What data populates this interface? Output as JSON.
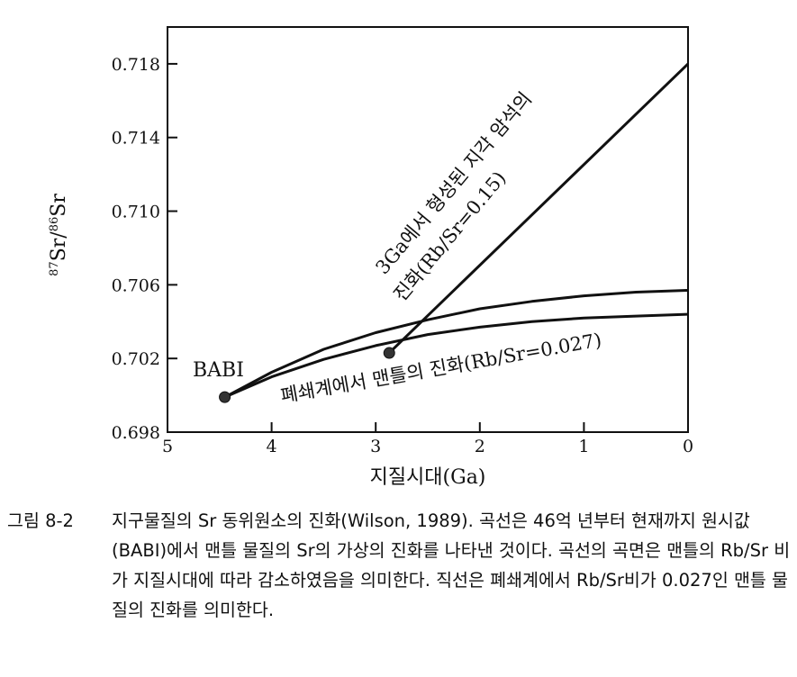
{
  "chart_data": {
    "type": "line",
    "xlabel": "지질시대(Ga)",
    "ylabel": "87Sr/86Sr",
    "xlim": [
      5,
      0
    ],
    "ylim": [
      0.698,
      0.72
    ],
    "xticks": [
      5,
      4,
      3,
      2,
      1,
      0
    ],
    "yticks": [
      0.698,
      0.702,
      0.706,
      0.71,
      0.714,
      0.718
    ],
    "xtick_labels": [
      "5",
      "4",
      "3",
      "2",
      "1",
      "0"
    ],
    "ytick_labels": [
      "0.698",
      "0.702",
      "0.706",
      "0.710",
      "0.714",
      "0.718"
    ],
    "series": [
      {
        "name": "",
        "x": [
          4.45,
          4.0,
          3.5,
          3.0,
          2.5,
          2.0,
          1.5,
          1.0,
          0.5,
          0.0
        ],
        "values": [
          0.6999,
          0.70125,
          0.7025,
          0.7034,
          0.7041,
          0.7047,
          0.7051,
          0.7054,
          0.7056,
          0.7057
        ]
      },
      {
        "name": "",
        "x": [
          4.45,
          4.0,
          3.5,
          3.0,
          2.5,
          2.0,
          1.5,
          1.0,
          0.5,
          0.0
        ],
        "values": [
          0.6999,
          0.701,
          0.70195,
          0.7027,
          0.7033,
          0.7037,
          0.704,
          0.7042,
          0.7043,
          0.7044
        ]
      },
      {
        "name": "",
        "x": [
          2.87,
          0.0
        ],
        "values": [
          0.7023,
          0.718
        ]
      }
    ],
    "points": [
      {
        "label": "BABI",
        "x": 4.45,
        "y": 0.6999
      },
      {
        "label": "",
        "x": 2.87,
        "y": 0.7023
      }
    ],
    "annotations": {
      "babi": "BABI",
      "crust_line1": "3Ga에서 형성된 지각 암석의",
      "crust_line2": "진화(Rb/Sr=0.15)",
      "mantle": "폐쇄계에서 맨틀의 진화(Rb/Sr=0.027)"
    },
    "grid": false
  },
  "caption": {
    "number": "그림 8-2",
    "text": "지구물질의 Sr 동위원소의 진화(Wilson, 1989). 곡선은 46억 년부터 현재까지 원시값(BABI)에서 맨틀 물질의 Sr의 가상의 진화를 나타낸 것이다. 곡선의 곡면은 맨틀의 Rb/Sr 비가 지질시대에 따라 감소하였음을 의미한다. 직선은 폐쇄계에서 Rb/Sr비가 0.027인 맨틀 물질의 진화를 의미한다."
  }
}
